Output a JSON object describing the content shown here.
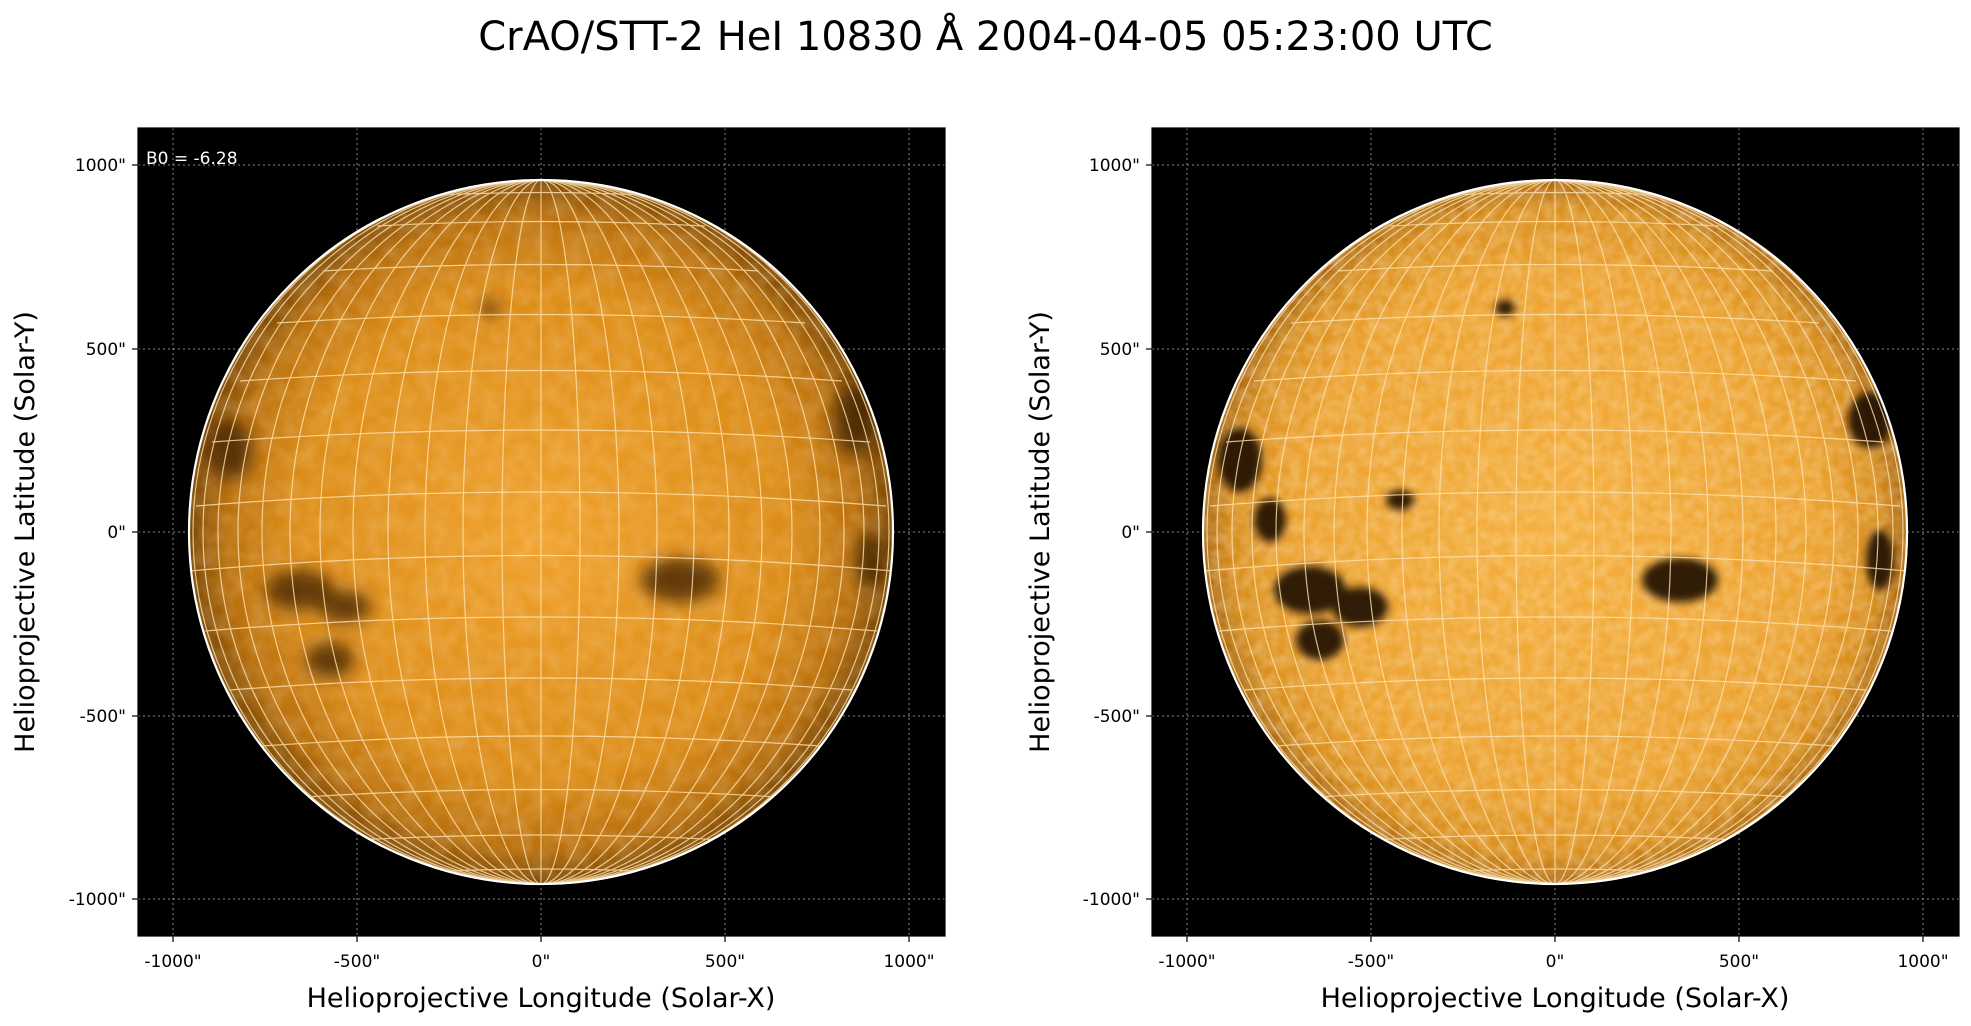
{
  "title": "CrAO/STT-2 HeI 10830 Å 2004-04-05 05:23:00 UTC",
  "colors": {
    "background": "#000000",
    "disk_center": "#f2a22c",
    "disk_limb": "#7a4806",
    "grid": "#ffe3b0",
    "limb_outline": "#ffffff"
  },
  "panels": [
    {
      "id": "left",
      "annotation": "B0 = -6.28",
      "xlabel": "Helioprojective Longitude (Solar-X)",
      "ylabel": "Helioprojective Latitude (Solar-Y)",
      "x_ticks": [
        "-1000\"",
        "-500\"",
        "0\"",
        "500\"",
        "1000\""
      ],
      "y_ticks": [
        "1000\"",
        "500\"",
        "0\"",
        "-500\"",
        "-1000\""
      ],
      "contrast": "normal"
    },
    {
      "id": "right",
      "annotation": "",
      "xlabel": "Helioprojective Longitude (Solar-X)",
      "ylabel": "Helioprojective Latitude (Solar-Y)",
      "x_ticks": [
        "-1000\"",
        "-500\"",
        "0\"",
        "500\"",
        "1000\""
      ],
      "y_ticks": [
        "1000\"",
        "500\"",
        "0\"",
        "-500\"",
        "-1000\""
      ],
      "contrast": "enhanced"
    }
  ]
}
